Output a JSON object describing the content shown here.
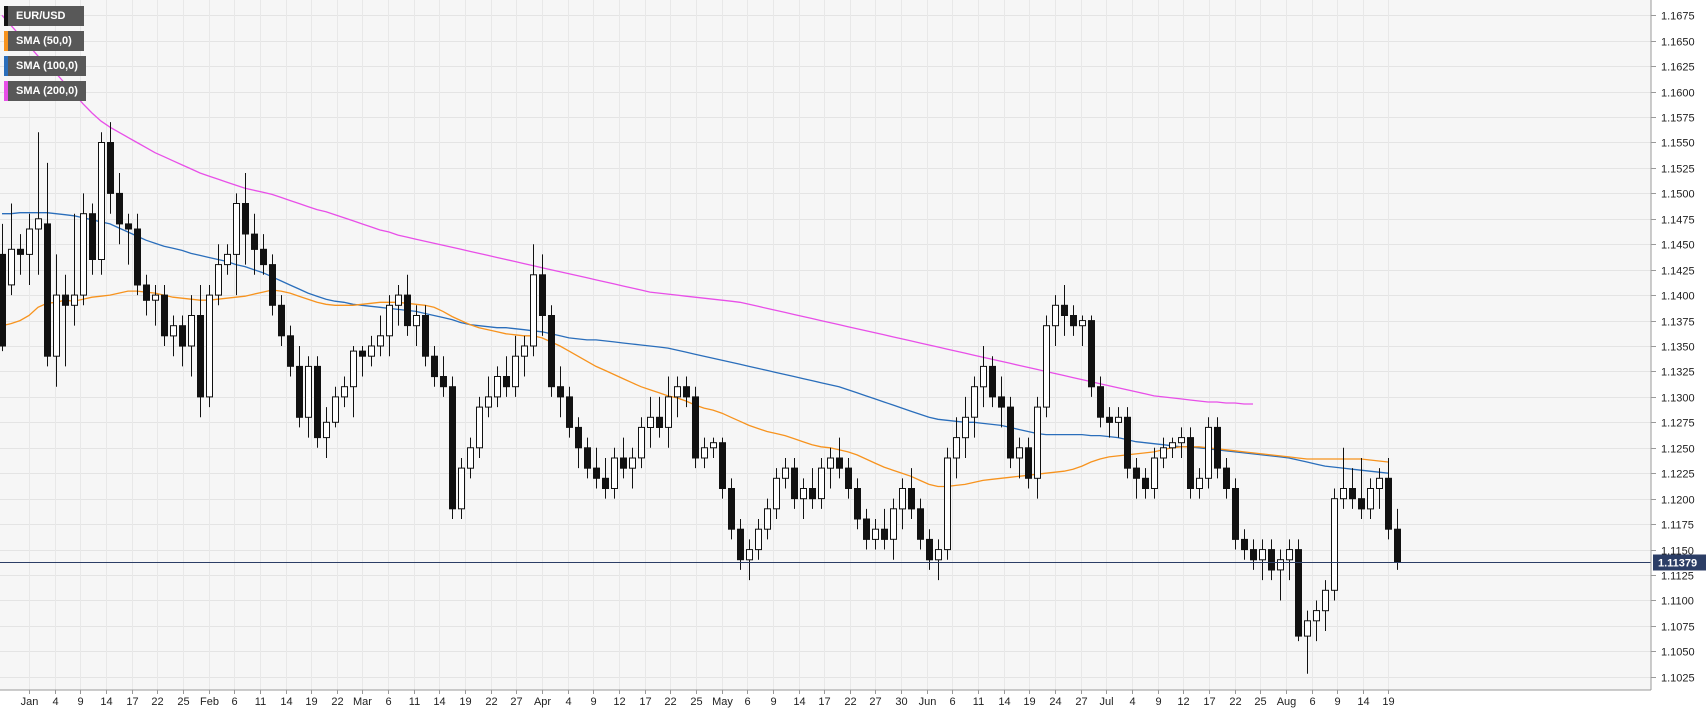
{
  "legend": [
    {
      "label": "EUR/USD",
      "color": "#111111"
    },
    {
      "label": "SMA (50,0)",
      "color": "#f7931e"
    },
    {
      "label": "SMA (100,0)",
      "color": "#2a6ebb"
    },
    {
      "label": "SMA (200,0)",
      "color": "#e84fe8"
    }
  ],
  "chart_data": {
    "type": "candlestick",
    "symbol": "EUR/USD",
    "y_axis_position": "right",
    "ylim": [
      1.1012,
      1.169
    ],
    "yticks": [
      "1.1025",
      "1.1050",
      "1.1075",
      "1.1100",
      "1.1125",
      "1.1150",
      "1.1175",
      "1.1200",
      "1.1225",
      "1.1250",
      "1.1275",
      "1.1300",
      "1.1325",
      "1.1350",
      "1.1375",
      "1.1400",
      "1.1425",
      "1.1450",
      "1.1475",
      "1.1500",
      "1.1525",
      "1.1550",
      "1.1575",
      "1.1600",
      "1.1625",
      "1.1650",
      "1.1675"
    ],
    "x_tick_labels": [
      "Jan",
      "4",
      "9",
      "14",
      "17",
      "22",
      "25",
      "Feb",
      "6",
      "11",
      "14",
      "19",
      "22",
      "Mar",
      "6",
      "11",
      "14",
      "19",
      "22",
      "27",
      "Apr",
      "4",
      "9",
      "12",
      "17",
      "22",
      "25",
      "May",
      "6",
      "9",
      "14",
      "17",
      "22",
      "27",
      "30",
      "Jun",
      "6",
      "11",
      "14",
      "19",
      "24",
      "27",
      "Jul",
      "4",
      "9",
      "12",
      "17",
      "22",
      "25",
      "Aug",
      "6",
      "9",
      "14",
      "19"
    ],
    "current_price": "1.11379",
    "current_price_value": 1.11379,
    "grid": true,
    "legend_position": "top-left",
    "candles": [
      [
        1.144,
        1.147,
        1.1345,
        1.135
      ],
      [
        1.141,
        1.149,
        1.14,
        1.1445
      ],
      [
        1.1445,
        1.146,
        1.142,
        1.144
      ],
      [
        1.144,
        1.148,
        1.141,
        1.1465
      ],
      [
        1.1465,
        1.156,
        1.142,
        1.1475
      ],
      [
        1.147,
        1.153,
        1.133,
        1.134
      ],
      [
        1.134,
        1.144,
        1.131,
        1.14
      ],
      [
        1.14,
        1.142,
        1.133,
        1.139
      ],
      [
        1.139,
        1.148,
        1.137,
        1.14
      ],
      [
        1.14,
        1.15,
        1.139,
        1.148
      ],
      [
        1.148,
        1.149,
        1.142,
        1.1435
      ],
      [
        1.1435,
        1.156,
        1.142,
        1.155
      ],
      [
        1.155,
        1.157,
        1.148,
        1.15
      ],
      [
        1.15,
        1.152,
        1.145,
        1.147
      ],
      [
        1.147,
        1.148,
        1.143,
        1.1465
      ],
      [
        1.1465,
        1.148,
        1.14,
        1.141
      ],
      [
        1.141,
        1.142,
        1.138,
        1.1395
      ],
      [
        1.1395,
        1.141,
        1.137,
        1.14
      ],
      [
        1.14,
        1.141,
        1.135,
        1.136
      ],
      [
        1.136,
        1.138,
        1.134,
        1.137
      ],
      [
        1.137,
        1.138,
        1.133,
        1.135
      ],
      [
        1.135,
        1.14,
        1.132,
        1.138
      ],
      [
        1.138,
        1.141,
        1.128,
        1.13
      ],
      [
        1.13,
        1.141,
        1.129,
        1.14
      ],
      [
        1.14,
        1.145,
        1.139,
        1.143
      ],
      [
        1.143,
        1.145,
        1.142,
        1.144
      ],
      [
        1.144,
        1.15,
        1.14,
        1.149
      ],
      [
        1.149,
        1.152,
        1.143,
        1.146
      ],
      [
        1.146,
        1.148,
        1.142,
        1.1445
      ],
      [
        1.1445,
        1.146,
        1.142,
        1.143
      ],
      [
        1.143,
        1.144,
        1.138,
        1.139
      ],
      [
        1.139,
        1.14,
        1.135,
        1.136
      ],
      [
        1.136,
        1.137,
        1.132,
        1.133
      ],
      [
        1.133,
        1.135,
        1.127,
        1.128
      ],
      [
        1.128,
        1.134,
        1.126,
        1.133
      ],
      [
        1.133,
        1.134,
        1.125,
        1.126
      ],
      [
        1.126,
        1.129,
        1.124,
        1.1275
      ],
      [
        1.1275,
        1.131,
        1.127,
        1.13
      ],
      [
        1.13,
        1.132,
        1.129,
        1.131
      ],
      [
        1.131,
        1.135,
        1.128,
        1.1345
      ],
      [
        1.1345,
        1.135,
        1.132,
        1.134
      ],
      [
        1.134,
        1.136,
        1.133,
        1.135
      ],
      [
        1.135,
        1.138,
        1.134,
        1.136
      ],
      [
        1.136,
        1.14,
        1.134,
        1.139
      ],
      [
        1.139,
        1.141,
        1.137,
        1.14
      ],
      [
        1.14,
        1.142,
        1.136,
        1.137
      ],
      [
        1.137,
        1.139,
        1.135,
        1.138
      ],
      [
        1.138,
        1.139,
        1.133,
        1.134
      ],
      [
        1.134,
        1.135,
        1.131,
        1.132
      ],
      [
        1.132,
        1.134,
        1.13,
        1.131
      ],
      [
        1.131,
        1.132,
        1.118,
        1.119
      ],
      [
        1.119,
        1.124,
        1.118,
        1.123
      ],
      [
        1.123,
        1.126,
        1.122,
        1.125
      ],
      [
        1.125,
        1.13,
        1.124,
        1.129
      ],
      [
        1.129,
        1.132,
        1.128,
        1.13
      ],
      [
        1.13,
        1.133,
        1.129,
        1.132
      ],
      [
        1.132,
        1.134,
        1.13,
        1.131
      ],
      [
        1.131,
        1.136,
        1.13,
        1.134
      ],
      [
        1.134,
        1.136,
        1.132,
        1.135
      ],
      [
        1.135,
        1.145,
        1.134,
        1.142
      ],
      [
        1.142,
        1.144,
        1.136,
        1.138
      ],
      [
        1.138,
        1.139,
        1.13,
        1.131
      ],
      [
        1.131,
        1.133,
        1.128,
        1.13
      ],
      [
        1.13,
        1.131,
        1.126,
        1.127
      ],
      [
        1.127,
        1.128,
        1.123,
        1.125
      ],
      [
        1.125,
        1.126,
        1.122,
        1.123
      ],
      [
        1.123,
        1.125,
        1.121,
        1.122
      ],
      [
        1.122,
        1.124,
        1.12,
        1.121
      ],
      [
        1.121,
        1.125,
        1.12,
        1.124
      ],
      [
        1.124,
        1.126,
        1.122,
        1.123
      ],
      [
        1.123,
        1.125,
        1.121,
        1.124
      ],
      [
        1.124,
        1.128,
        1.123,
        1.127
      ],
      [
        1.127,
        1.13,
        1.125,
        1.128
      ],
      [
        1.128,
        1.13,
        1.126,
        1.127
      ],
      [
        1.127,
        1.132,
        1.125,
        1.13
      ],
      [
        1.13,
        1.132,
        1.128,
        1.131
      ],
      [
        1.131,
        1.132,
        1.129,
        1.13
      ],
      [
        1.13,
        1.131,
        1.123,
        1.124
      ],
      [
        1.124,
        1.126,
        1.123,
        1.125
      ],
      [
        1.125,
        1.126,
        1.124,
        1.1255
      ],
      [
        1.1255,
        1.126,
        1.12,
        1.121
      ],
      [
        1.121,
        1.122,
        1.116,
        1.117
      ],
      [
        1.117,
        1.118,
        1.113,
        1.114
      ],
      [
        1.114,
        1.116,
        1.112,
        1.115
      ],
      [
        1.115,
        1.118,
        1.114,
        1.117
      ],
      [
        1.117,
        1.12,
        1.116,
        1.119
      ],
      [
        1.119,
        1.123,
        1.118,
        1.122
      ],
      [
        1.122,
        1.124,
        1.121,
        1.123
      ],
      [
        1.123,
        1.124,
        1.119,
        1.12
      ],
      [
        1.12,
        1.122,
        1.118,
        1.121
      ],
      [
        1.121,
        1.123,
        1.119,
        1.12
      ],
      [
        1.12,
        1.124,
        1.119,
        1.123
      ],
      [
        1.123,
        1.125,
        1.121,
        1.124
      ],
      [
        1.124,
        1.126,
        1.122,
        1.123
      ],
      [
        1.123,
        1.124,
        1.12,
        1.121
      ],
      [
        1.121,
        1.122,
        1.117,
        1.118
      ],
      [
        1.118,
        1.119,
        1.115,
        1.116
      ],
      [
        1.116,
        1.118,
        1.115,
        1.117
      ],
      [
        1.117,
        1.119,
        1.115,
        1.116
      ],
      [
        1.116,
        1.12,
        1.114,
        1.119
      ],
      [
        1.119,
        1.122,
        1.117,
        1.121
      ],
      [
        1.121,
        1.123,
        1.118,
        1.119
      ],
      [
        1.119,
        1.12,
        1.115,
        1.116
      ],
      [
        1.116,
        1.117,
        1.113,
        1.114
      ],
      [
        1.114,
        1.116,
        1.112,
        1.115
      ],
      [
        1.115,
        1.125,
        1.114,
        1.124
      ],
      [
        1.124,
        1.128,
        1.122,
        1.126
      ],
      [
        1.126,
        1.13,
        1.124,
        1.128
      ],
      [
        1.128,
        1.132,
        1.126,
        1.131
      ],
      [
        1.131,
        1.135,
        1.129,
        1.133
      ],
      [
        1.133,
        1.134,
        1.129,
        1.13
      ],
      [
        1.13,
        1.132,
        1.127,
        1.129
      ],
      [
        1.129,
        1.13,
        1.123,
        1.124
      ],
      [
        1.124,
        1.126,
        1.122,
        1.125
      ],
      [
        1.125,
        1.126,
        1.121,
        1.122
      ],
      [
        1.122,
        1.13,
        1.12,
        1.129
      ],
      [
        1.129,
        1.138,
        1.128,
        1.137
      ],
      [
        1.137,
        1.14,
        1.135,
        1.139
      ],
      [
        1.139,
        1.141,
        1.136,
        1.138
      ],
      [
        1.138,
        1.139,
        1.136,
        1.137
      ],
      [
        1.137,
        1.138,
        1.135,
        1.1375
      ],
      [
        1.1375,
        1.138,
        1.13,
        1.131
      ],
      [
        1.131,
        1.132,
        1.127,
        1.128
      ],
      [
        1.128,
        1.129,
        1.126,
        1.1275
      ],
      [
        1.1275,
        1.129,
        1.126,
        1.128
      ],
      [
        1.128,
        1.129,
        1.122,
        1.123
      ],
      [
        1.123,
        1.124,
        1.12,
        1.122
      ],
      [
        1.122,
        1.123,
        1.12,
        1.121
      ],
      [
        1.121,
        1.125,
        1.12,
        1.124
      ],
      [
        1.124,
        1.126,
        1.123,
        1.125
      ],
      [
        1.125,
        1.126,
        1.124,
        1.1255
      ],
      [
        1.1255,
        1.127,
        1.124,
        1.126
      ],
      [
        1.126,
        1.127,
        1.12,
        1.121
      ],
      [
        1.121,
        1.123,
        1.12,
        1.122
      ],
      [
        1.122,
        1.128,
        1.121,
        1.127
      ],
      [
        1.127,
        1.128,
        1.122,
        1.123
      ],
      [
        1.123,
        1.124,
        1.12,
        1.121
      ],
      [
        1.121,
        1.122,
        1.115,
        1.116
      ],
      [
        1.116,
        1.117,
        1.114,
        1.115
      ],
      [
        1.115,
        1.116,
        1.113,
        1.114
      ],
      [
        1.114,
        1.116,
        1.112,
        1.115
      ],
      [
        1.115,
        1.116,
        1.112,
        1.113
      ],
      [
        1.113,
        1.115,
        1.11,
        1.114
      ],
      [
        1.114,
        1.116,
        1.112,
        1.115
      ],
      [
        1.115,
        1.116,
        1.106,
        1.1065
      ],
      [
        1.1065,
        1.109,
        1.1028,
        1.108
      ],
      [
        1.108,
        1.11,
        1.106,
        1.109
      ],
      [
        1.109,
        1.112,
        1.107,
        1.111
      ],
      [
        1.111,
        1.121,
        1.11,
        1.12
      ],
      [
        1.12,
        1.125,
        1.119,
        1.121
      ],
      [
        1.121,
        1.123,
        1.119,
        1.12
      ],
      [
        1.12,
        1.124,
        1.118,
        1.119
      ],
      [
        1.119,
        1.122,
        1.118,
        1.121
      ],
      [
        1.121,
        1.123,
        1.119,
        1.122
      ],
      [
        1.122,
        1.124,
        1.116,
        1.117
      ],
      [
        1.117,
        1.119,
        1.113,
        1.1138
      ]
    ],
    "sma50": [
      1.137,
      1.1372,
      1.1375,
      1.138,
      1.1388,
      1.1392,
      1.1393,
      1.1395,
      1.1394,
      1.1396,
      1.1398,
      1.1399,
      1.14,
      1.1402,
      1.1404,
      1.1404,
      1.1403,
      1.1402,
      1.14,
      1.1398,
      1.1397,
      1.1396,
      1.1395,
      1.1395,
      1.1396,
      1.1397,
      1.1398,
      1.1399,
      1.1401,
      1.1403,
      1.1405,
      1.1404,
      1.1402,
      1.1399,
      1.1396,
      1.1393,
      1.1391,
      1.139,
      1.139,
      1.139,
      1.1391,
      1.1392,
      1.1393,
      1.1393,
      1.1393,
      1.1392,
      1.1391,
      1.139,
      1.1388,
      1.1384,
      1.1379,
      1.1375,
      1.1371,
      1.1368,
      1.1366,
      1.1364,
      1.1362,
      1.1361,
      1.136,
      1.136,
      1.1358,
      1.1354,
      1.135,
      1.1345,
      1.134,
      1.1335,
      1.133,
      1.1326,
      1.1322,
      1.1318,
      1.1314,
      1.131,
      1.1307,
      1.1304,
      1.1301,
      1.1299,
      1.1296,
      1.1292,
      1.1289,
      1.1287,
      1.1284,
      1.128,
      1.1276,
      1.1272,
      1.1269,
      1.1266,
      1.1264,
      1.1262,
      1.1259,
      1.1256,
      1.1253,
      1.1251,
      1.125,
      1.1248,
      1.1246,
      1.1243,
      1.1239,
      1.1235,
      1.1231,
      1.1228,
      1.1225,
      1.1222,
      1.1218,
      1.1214,
      1.1212,
      1.1212,
      1.1213,
      1.1214,
      1.1216,
      1.1218,
      1.1219,
      1.122,
      1.1221,
      1.1222,
      1.1223,
      1.1224,
      1.1225,
      1.1226,
      1.1227,
      1.1229,
      1.1232,
      1.1236,
      1.1239,
      1.1241,
      1.1242,
      1.1243,
      1.1244,
      1.1245,
      1.1246,
      1.1248,
      1.125,
      1.1251,
      1.1251,
      1.1251,
      1.125,
      1.1249,
      1.1248,
      1.1247,
      1.1246,
      1.1245,
      1.1244,
      1.1243,
      1.1242,
      1.1241,
      1.124,
      1.1239,
      1.1239,
      1.1239,
      1.1239,
      1.1239,
      1.1239,
      1.1239,
      1.1238,
      1.1237,
      1.1236
    ],
    "sma100": [
      1.148,
      1.148,
      1.1481,
      1.1481,
      1.1481,
      1.1481,
      1.148,
      1.1479,
      1.1478,
      1.1476,
      1.1474,
      1.1472,
      1.147,
      1.1466,
      1.1462,
      1.1458,
      1.1454,
      1.1451,
      1.1448,
      1.1446,
      1.1444,
      1.1441,
      1.1439,
      1.1437,
      1.1435,
      1.1433,
      1.143,
      1.1428,
      1.1425,
      1.1422,
      1.1418,
      1.1414,
      1.141,
      1.1406,
      1.1402,
      1.1399,
      1.1396,
      1.1394,
      1.1393,
      1.1391,
      1.139,
      1.1389,
      1.1388,
      1.1387,
      1.1386,
      1.1385,
      1.1384,
      1.1382,
      1.138,
      1.1378,
      1.1376,
      1.1373,
      1.1371,
      1.137,
      1.1369,
      1.1368,
      1.1368,
      1.1367,
      1.1366,
      1.1365,
      1.1364,
      1.1362,
      1.136,
      1.1358,
      1.1357,
      1.1356,
      1.1356,
      1.1355,
      1.1354,
      1.1353,
      1.1352,
      1.1351,
      1.135,
      1.1349,
      1.1348,
      1.1346,
      1.1344,
      1.1342,
      1.134,
      1.1338,
      1.1336,
      1.1334,
      1.1332,
      1.133,
      1.1328,
      1.1326,
      1.1324,
      1.1322,
      1.132,
      1.1318,
      1.1316,
      1.1314,
      1.1312,
      1.131,
      1.1307,
      1.1304,
      1.1301,
      1.1298,
      1.1295,
      1.1292,
      1.1289,
      1.1286,
      1.1283,
      1.128,
      1.1278,
      1.1277,
      1.1276,
      1.1275,
      1.1275,
      1.1274,
      1.1273,
      1.1272,
      1.127,
      1.1268,
      1.1266,
      1.1264,
      1.1263,
      1.1263,
      1.1263,
      1.1263,
      1.1263,
      1.1262,
      1.1262,
      1.1261,
      1.126,
      1.1258,
      1.1256,
      1.1255,
      1.1254,
      1.1253,
      1.1252,
      1.1251,
      1.1251,
      1.125,
      1.1249,
      1.1248,
      1.1247,
      1.1246,
      1.1245,
      1.1244,
      1.1243,
      1.1242,
      1.1241,
      1.124,
      1.1238,
      1.1236,
      1.1234,
      1.1232,
      1.1231,
      1.123,
      1.1229,
      1.1228,
      1.1227,
      1.1226,
      1.1225
    ],
    "sma200": [
      1.1675,
      1.1665,
      1.1655,
      1.1645,
      1.1635,
      1.1627,
      1.1618,
      1.1608,
      1.1598,
      1.1588,
      1.1579,
      1.1571,
      1.1565,
      1.156,
      1.1555,
      1.155,
      1.1545,
      1.154,
      1.1536,
      1.1532,
      1.1528,
      1.1524,
      1.152,
      1.1517,
      1.1514,
      1.1511,
      1.1508,
      1.1505,
      1.1503,
      1.1501,
      1.1499,
      1.1496,
      1.1493,
      1.149,
      1.1487,
      1.1484,
      1.1482,
      1.1479,
      1.1476,
      1.1473,
      1.147,
      1.1467,
      1.1464,
      1.1462,
      1.1459,
      1.1457,
      1.1455,
      1.1453,
      1.1451,
      1.1449,
      1.1447,
      1.1445,
      1.1443,
      1.1441,
      1.1439,
      1.1437,
      1.1435,
      1.1433,
      1.1431,
      1.1429,
      1.1427,
      1.1425,
      1.1423,
      1.1421,
      1.1419,
      1.1417,
      1.1415,
      1.1413,
      1.1411,
      1.1409,
      1.1407,
      1.1405,
      1.1403,
      1.1402,
      1.1401,
      1.14,
      1.1399,
      1.1398,
      1.1397,
      1.1396,
      1.1395,
      1.1394,
      1.1393,
      1.1391,
      1.1389,
      1.1387,
      1.1385,
      1.1383,
      1.1381,
      1.1379,
      1.1377,
      1.1375,
      1.1373,
      1.1371,
      1.1369,
      1.1367,
      1.1365,
      1.1363,
      1.1361,
      1.1359,
      1.1357,
      1.1355,
      1.1353,
      1.1351,
      1.1349,
      1.1347,
      1.1345,
      1.1343,
      1.1341,
      1.1339,
      1.1337,
      1.1335,
      1.1333,
      1.1331,
      1.1329,
      1.1327,
      1.1325,
      1.1323,
      1.1321,
      1.1319,
      1.1317,
      1.1315,
      1.1313,
      1.1311,
      1.1309,
      1.1307,
      1.1305,
      1.1303,
      1.1301,
      1.13,
      1.1299,
      1.1298,
      1.1297,
      1.1296,
      1.1295,
      1.1295,
      1.1294,
      1.1294,
      1.1293,
      1.1293
    ]
  }
}
